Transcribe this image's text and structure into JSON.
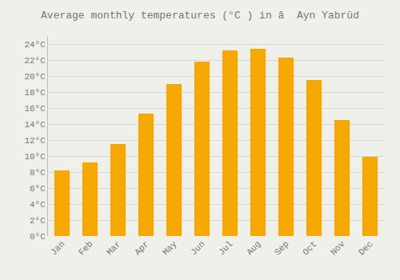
{
  "chart_data": {
    "type": "bar",
    "title": "Average monthly temperatures (°C ) in â  Ayn Yabrūd",
    "categories": [
      "Jan",
      "Feb",
      "Mar",
      "Apr",
      "May",
      "Jun",
      "Jul",
      "Aug",
      "Sep",
      "Oct",
      "Nov",
      "Dec"
    ],
    "values": [
      8.2,
      9.2,
      11.5,
      15.3,
      19.0,
      21.8,
      23.2,
      23.4,
      22.3,
      19.5,
      14.5,
      9.9
    ],
    "color": "#F5A800",
    "ylim": [
      0,
      25
    ],
    "yticks": [
      {
        "value": 0,
        "label": "0°C"
      },
      {
        "value": 2,
        "label": "2°C"
      },
      {
        "value": 4,
        "label": "4°C"
      },
      {
        "value": 6,
        "label": "6°C"
      },
      {
        "value": 8,
        "label": "8°C"
      },
      {
        "value": 10,
        "label": "10°C"
      },
      {
        "value": 12,
        "label": "12°C"
      },
      {
        "value": 14,
        "label": "14°C"
      },
      {
        "value": 16,
        "label": "16°C"
      },
      {
        "value": 18,
        "label": "18°C"
      },
      {
        "value": 20,
        "label": "20°C"
      },
      {
        "value": 22,
        "label": "22°C"
      },
      {
        "value": 24,
        "label": "24°C"
      }
    ],
    "grid": true
  }
}
